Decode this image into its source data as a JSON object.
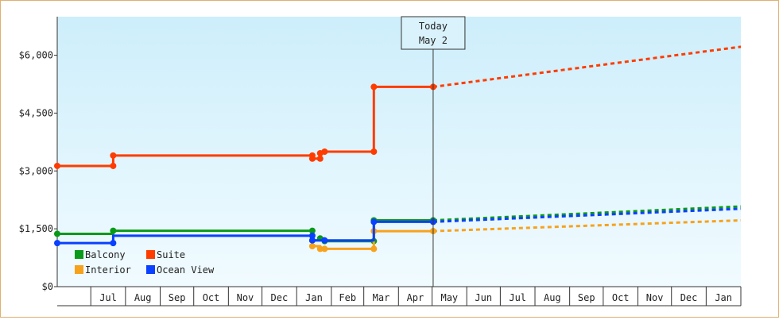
{
  "chart_data": {
    "type": "line",
    "title": "",
    "xlabel": "",
    "ylabel": "",
    "ylim": [
      0,
      7000
    ],
    "y_ticks": [
      "$0",
      "$1,500",
      "$3,000",
      "$4,500",
      "$6,000"
    ],
    "y_tick_values": [
      0,
      1500,
      3000,
      4500,
      6000
    ],
    "x_ticks": [
      "Jul",
      "Aug",
      "Sep",
      "Oct",
      "Nov",
      "Dec",
      "Jan",
      "Feb",
      "Mar",
      "Apr",
      "May",
      "Jun",
      "Jul",
      "Aug",
      "Sep",
      "Oct",
      "Nov",
      "Dec",
      "Jan"
    ],
    "xlim": [
      "2023-06-01",
      "2025-02-01"
    ],
    "today_label": [
      "Today",
      "May 2"
    ],
    "today_date": "2024-05-02",
    "grid": false,
    "legend_position": "bottom-left",
    "series": [
      {
        "name": "Suite",
        "color": "#ff3c00",
        "points": [
          [
            "2023-06-01",
            3130
          ],
          [
            "2023-07-21",
            3130
          ],
          [
            "2023-07-21",
            3400
          ],
          [
            "2024-01-15",
            3400
          ],
          [
            "2024-01-15",
            3320
          ],
          [
            "2024-01-22",
            3320
          ],
          [
            "2024-01-22",
            3460
          ],
          [
            "2024-01-26",
            3460
          ],
          [
            "2024-01-26",
            3500
          ],
          [
            "2024-03-10",
            3500
          ],
          [
            "2024-03-10",
            5180
          ],
          [
            "2024-05-02",
            5180
          ]
        ],
        "forecast": [
          [
            "2024-05-02",
            5180
          ],
          [
            "2025-02-01",
            6220
          ]
        ]
      },
      {
        "name": "Balcony",
        "color": "#0a9a1a",
        "points": [
          [
            "2023-06-01",
            1370
          ],
          [
            "2023-07-21",
            1370
          ],
          [
            "2023-07-21",
            1450
          ],
          [
            "2024-01-15",
            1450
          ],
          [
            "2024-01-15",
            1200
          ],
          [
            "2024-01-22",
            1200
          ],
          [
            "2024-01-22",
            1250
          ],
          [
            "2024-01-26",
            1250
          ],
          [
            "2024-01-26",
            1180
          ],
          [
            "2024-03-10",
            1180
          ],
          [
            "2024-03-10",
            1720
          ],
          [
            "2024-05-02",
            1720
          ]
        ],
        "forecast": [
          [
            "2024-05-02",
            1720
          ],
          [
            "2025-02-01",
            2080
          ]
        ]
      },
      {
        "name": "Interior",
        "color": "#f7a21c",
        "points": [
          [
            "2024-01-15",
            1050
          ],
          [
            "2024-01-22",
            1050
          ],
          [
            "2024-01-22",
            980
          ],
          [
            "2024-03-10",
            980
          ],
          [
            "2024-03-10",
            1440
          ],
          [
            "2024-05-02",
            1440
          ]
        ],
        "forecast": [
          [
            "2024-05-02",
            1440
          ],
          [
            "2025-02-01",
            1720
          ]
        ]
      },
      {
        "name": "Ocean View",
        "color": "#0a40ff",
        "points": [
          [
            "2023-06-01",
            1130
          ],
          [
            "2023-07-21",
            1130
          ],
          [
            "2023-07-21",
            1320
          ],
          [
            "2024-01-15",
            1320
          ],
          [
            "2024-01-15",
            1200
          ],
          [
            "2024-01-26",
            1200
          ],
          [
            "2024-03-10",
            1200
          ],
          [
            "2024-03-10",
            1680
          ],
          [
            "2024-05-02",
            1680
          ]
        ],
        "forecast": [
          [
            "2024-05-02",
            1680
          ],
          [
            "2025-02-01",
            2020
          ]
        ]
      }
    ],
    "markers": {
      "Suite": [
        [
          "2023-06-01",
          3130
        ],
        [
          "2023-07-21",
          3130
        ],
        [
          "2023-07-21",
          3400
        ],
        [
          "2024-01-15",
          3400
        ],
        [
          "2024-01-15",
          3320
        ],
        [
          "2024-01-22",
          3320
        ],
        [
          "2024-01-22",
          3460
        ],
        [
          "2024-01-26",
          3500
        ],
        [
          "2024-03-10",
          3500
        ],
        [
          "2024-03-10",
          5180
        ],
        [
          "2024-05-02",
          5180
        ]
      ],
      "Balcony": [
        [
          "2023-06-01",
          1370
        ],
        [
          "2023-07-21",
          1450
        ],
        [
          "2024-01-15",
          1450
        ],
        [
          "2024-01-15",
          1200
        ],
        [
          "2024-01-22",
          1250
        ],
        [
          "2024-01-26",
          1180
        ],
        [
          "2024-03-10",
          1180
        ],
        [
          "2024-03-10",
          1720
        ],
        [
          "2024-05-02",
          1720
        ]
      ],
      "Interior": [
        [
          "2024-01-15",
          1050
        ],
        [
          "2024-01-22",
          980
        ],
        [
          "2024-01-26",
          980
        ],
        [
          "2024-03-10",
          980
        ],
        [
          "2024-03-10",
          1440
        ],
        [
          "2024-05-02",
          1440
        ]
      ],
      "Ocean View": [
        [
          "2023-06-01",
          1130
        ],
        [
          "2023-07-21",
          1130
        ],
        [
          "2024-01-15",
          1320
        ],
        [
          "2024-01-15",
          1200
        ],
        [
          "2024-01-26",
          1200
        ],
        [
          "2024-03-10",
          1680
        ],
        [
          "2024-05-02",
          1680
        ]
      ]
    },
    "legend": [
      "Balcony",
      "Suite",
      "Interior",
      "Ocean View"
    ]
  }
}
